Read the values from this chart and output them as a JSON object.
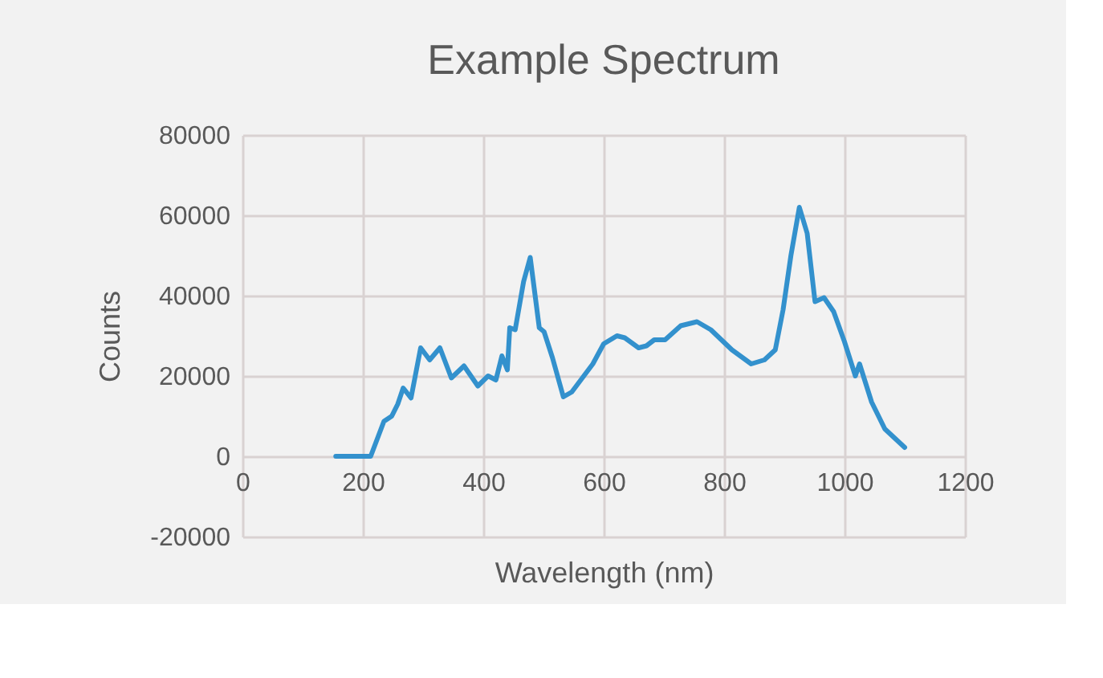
{
  "chart_data": {
    "type": "line",
    "title": "Example Spectrum",
    "xlabel": "Wavelength (nm)",
    "ylabel": "Counts",
    "x": [
      155,
      213,
      235,
      248,
      258,
      267,
      280,
      296,
      311,
      328,
      347,
      368,
      391,
      408,
      421,
      431,
      440,
      444,
      453,
      467,
      478,
      493,
      501,
      515,
      533,
      547,
      582,
      600,
      622,
      635,
      658,
      671,
      684,
      702,
      728,
      755,
      778,
      813,
      845,
      867,
      885,
      898,
      911,
      925,
      938,
      951,
      966,
      982,
      1000,
      1018,
      1025,
      1045,
      1067,
      1100
    ],
    "series": [
      {
        "color": "#3391cd",
        "values": [
          0,
          0,
          8700,
          10000,
          13000,
          17000,
          14500,
          27000,
          24000,
          27000,
          19500,
          22500,
          17500,
          20000,
          19000,
          25000,
          21500,
          32000,
          31500,
          43500,
          49500,
          32000,
          31000,
          24500,
          14800,
          16000,
          23000,
          28000,
          30000,
          29500,
          27000,
          27500,
          29000,
          29000,
          32500,
          33500,
          31500,
          26500,
          23000,
          24000,
          26500,
          36500,
          50000,
          62000,
          55500,
          38500,
          39500,
          36000,
          28500,
          20000,
          23000,
          13500,
          6800,
          2200
        ]
      }
    ],
    "xlim": [
      0,
      1200
    ],
    "xticks": [
      0,
      200,
      400,
      600,
      800,
      1000,
      1200
    ],
    "ylim": [
      -20000,
      80000
    ],
    "yticks": [
      -20000,
      0,
      20000,
      40000,
      60000,
      80000
    ],
    "grid": true,
    "marker": "none",
    "line_style": "solid"
  }
}
